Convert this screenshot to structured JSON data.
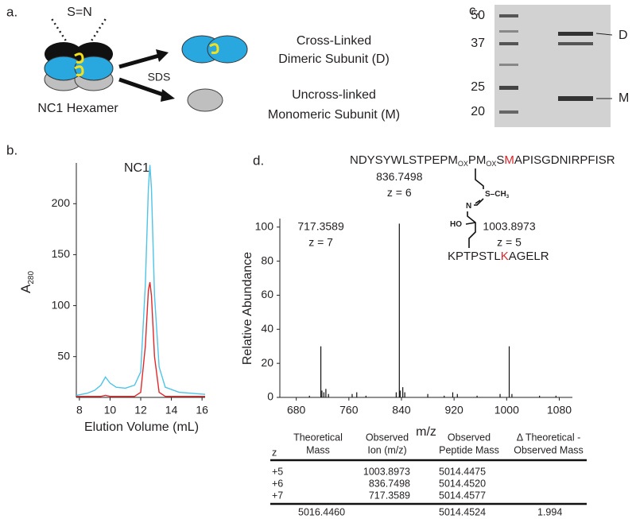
{
  "panel_labels": [
    "a.",
    "b.",
    "c.",
    "d."
  ],
  "diagram": {
    "crosslinker": "S=N",
    "complex": "NC1 Hexamer",
    "treatment": "SDS",
    "products": [
      {
        "lines": [
          "Cross-Linked",
          "Dimeric Subunit (D)"
        ]
      },
      {
        "lines": [
          "Uncross-linked",
          "Monomeric Subunit (M)"
        ]
      }
    ]
  },
  "gel": {
    "markers": [
      50,
      37,
      25,
      20
    ],
    "bands": [
      "D",
      "M"
    ]
  },
  "chart_data": [
    {
      "type": "line",
      "title": "NC1",
      "xlabel": "Elution Volume (mL)",
      "ylabel": {
        "text": "A",
        "sub": "280"
      },
      "x": [
        7.8,
        8.5,
        9.0,
        9.4,
        9.7,
        10.0,
        10.4,
        11.0,
        11.6,
        12.0,
        12.3,
        12.5,
        12.6,
        12.7,
        12.9,
        13.2,
        13.6,
        14.5,
        16.2
      ],
      "series": [
        {
          "color": "#4fc3e8",
          "values": [
            12,
            14,
            17,
            22,
            30,
            24,
            20,
            19,
            22,
            35,
            120,
            215,
            238,
            215,
            110,
            40,
            20,
            15,
            13
          ]
        },
        {
          "color": "#e0282b",
          "values": [
            11,
            11,
            11,
            11,
            12,
            11,
            11,
            11,
            11,
            15,
            60,
            115,
            123,
            110,
            50,
            15,
            11,
            11,
            11
          ]
        }
      ],
      "xlim": [
        7.8,
        16.2
      ],
      "ylim": [
        10,
        240
      ],
      "xticks": [
        8,
        10,
        12,
        14,
        16
      ],
      "yticks": [
        50,
        100,
        150,
        200
      ]
    },
    {
      "type": "spectrum",
      "xlabel": "m/z",
      "ylabel": "Relative Abundance",
      "color": "#111111",
      "peaks": {
        "x": [
          717.3589,
          836.7498,
          1003.8973
        ],
        "values": [
          30,
          102,
          30
        ],
        "charge_labels": [
          "z = 7",
          "z = 6",
          "z = 5"
        ]
      },
      "minor_peaks": {
        "x": [
          700,
          719,
          722,
          725,
          729,
          765,
          772,
          786,
          832,
          838,
          842,
          845,
          880,
          905,
          918,
          925,
          955,
          990,
          1008,
          1050,
          1075
        ],
        "values": [
          1,
          4,
          3,
          5,
          2,
          2,
          3,
          1,
          3,
          4,
          6,
          3,
          2,
          1,
          3,
          2,
          1,
          2,
          2,
          1,
          1
        ]
      },
      "xlim": [
        655,
        1100
      ],
      "ylim": [
        0,
        105
      ],
      "xticks": [
        680,
        760,
        840,
        920,
        1000,
        1080
      ],
      "yticks": [
        0,
        20,
        40,
        60,
        80,
        100
      ]
    }
  ],
  "peptide": {
    "highlight_color": "#d7262b",
    "sequence": [
      {
        "text": "NDYSYWLSTPEPM"
      },
      {
        "text": "OX",
        "sub": true
      },
      {
        "text": "PM"
      },
      {
        "text": "OX",
        "sub": true
      },
      {
        "text": "S"
      },
      {
        "text": "M",
        "highlight": true
      },
      {
        "text": "APISGDNIRPFISR"
      }
    ],
    "partner": [
      {
        "text": "KPTPSTL"
      },
      {
        "text": "K",
        "highlight": true
      },
      {
        "text": "AGELR"
      }
    ],
    "atoms": [
      [
        {
          "text": "S"
        },
        {
          "text": "–CH"
        },
        {
          "text": "3",
          "sub": true
        }
      ],
      [
        {
          "text": "N"
        }
      ],
      [
        {
          "text": "HO"
        }
      ]
    ]
  },
  "table": {
    "header": [
      [
        "z"
      ],
      [
        "Theoretical",
        "Mass"
      ],
      [
        "Observed",
        "Ion (m/z)"
      ],
      [
        "Observed",
        "Peptide Mass"
      ],
      [
        "Δ Theoretical -",
        "Observed Mass"
      ]
    ],
    "rows": [
      [
        "+5",
        null,
        "1003.8973",
        "5014.4475",
        null
      ],
      [
        "+6",
        null,
        "836.7498",
        "5014.4520",
        null
      ],
      [
        "+7",
        null,
        "717.3589",
        "5014.4577",
        null
      ]
    ],
    "summary": [
      null,
      "5016.4460",
      null,
      "5014.4524",
      "1.994"
    ]
  }
}
